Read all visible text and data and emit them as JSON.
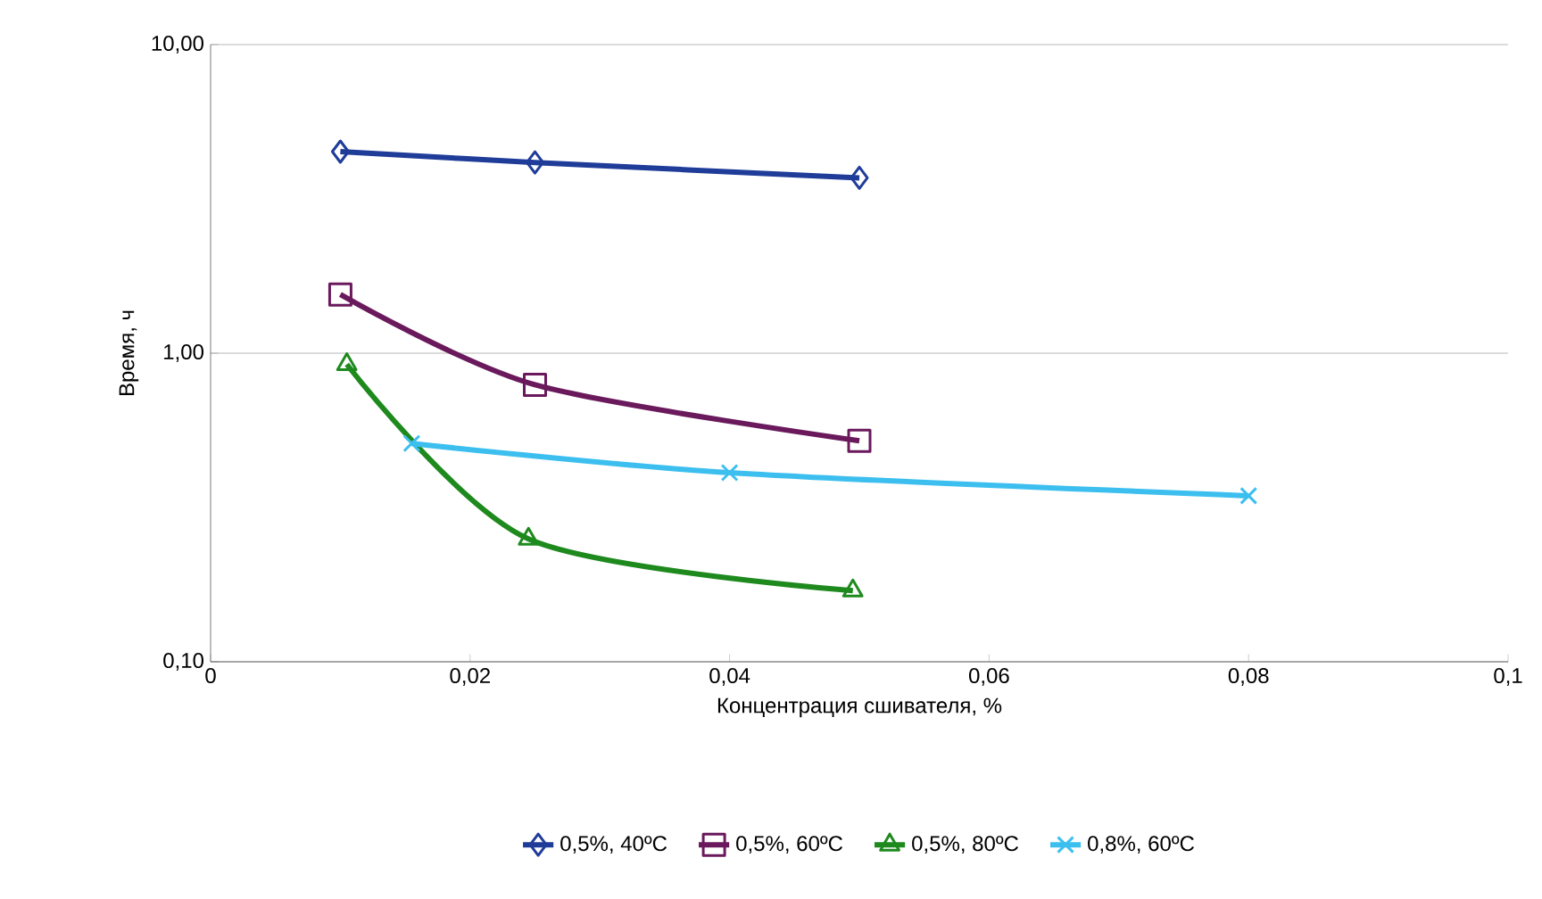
{
  "chart_data": {
    "type": "line",
    "xlabel": "Концентрация сшивателя, %",
    "ylabel": "Время, ч",
    "xlim": [
      0,
      0.1
    ],
    "xticks": [
      {
        "value": 0,
        "label": "0"
      },
      {
        "value": 0.02,
        "label": "0,02"
      },
      {
        "value": 0.04,
        "label": "0,04"
      },
      {
        "value": 0.06,
        "label": "0,06"
      },
      {
        "value": 0.08,
        "label": "0,08"
      },
      {
        "value": 0.1,
        "label": "0,1"
      }
    ],
    "ylim": [
      0.1,
      10
    ],
    "yticks": [
      {
        "value": 0.1,
        "label": "0,10"
      },
      {
        "value": 1,
        "label": "1,00"
      },
      {
        "value": 10,
        "label": "10,00"
      }
    ],
    "log": "y",
    "grid": "y",
    "legend": "bottom",
    "series": [
      {
        "name": "0,5%, 40ºC",
        "color": "#1f3c99",
        "marker": "diamond",
        "x": [
          0.01,
          0.025,
          0.05
        ],
        "values": [
          4.5,
          4.15,
          3.7
        ]
      },
      {
        "name": "0,5%, 60ºC",
        "color": "#6a1a5c",
        "marker": "square",
        "x": [
          0.01,
          0.025,
          0.05
        ],
        "values": [
          1.55,
          0.79,
          0.52
        ]
      },
      {
        "name": "0,5%, 80ºC",
        "color": "#1e8a1e",
        "marker": "triangle",
        "x": [
          0.0105,
          0.0245,
          0.0495
        ],
        "values": [
          0.92,
          0.25,
          0.17
        ]
      },
      {
        "name": "0,8%, 60ºC",
        "color": "#3cbfef",
        "marker": "cross",
        "x": [
          0.0155,
          0.04,
          0.08
        ],
        "values": [
          0.51,
          0.41,
          0.345
        ]
      }
    ]
  }
}
